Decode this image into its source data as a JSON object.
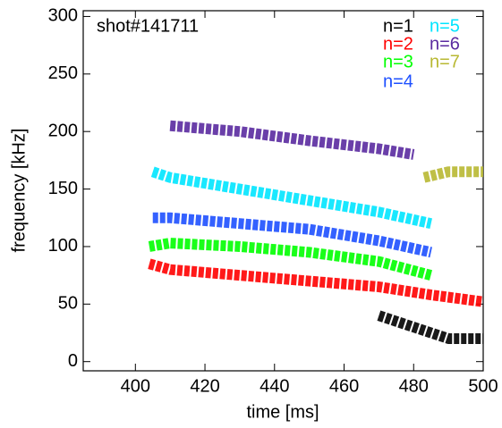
{
  "chart_data": {
    "type": "line",
    "annotation": "shot#141711",
    "xlabel": "time  [ms]",
    "ylabel": "frequency [kHz]",
    "xlim": [
      385,
      500
    ],
    "xticks": [
      400,
      420,
      440,
      460,
      480,
      500
    ],
    "ylim": [
      -8,
      305
    ],
    "yticks": [
      0,
      50,
      100,
      150,
      200,
      250,
      300
    ],
    "legend": "top-right",
    "series": [
      {
        "name": "n=1",
        "color": "#000000",
        "x": [
          470,
          475,
          480,
          485,
          490,
          500
        ],
        "values": [
          40,
          35,
          30,
          25,
          20,
          20
        ]
      },
      {
        "name": "n=2",
        "color": "#ff0000",
        "x": [
          404,
          410,
          430,
          450,
          470,
          485,
          500
        ],
        "values": [
          85,
          80,
          75,
          70,
          65,
          58,
          52
        ]
      },
      {
        "name": "n=3",
        "color": "#00ff00",
        "x": [
          404,
          410,
          430,
          450,
          470,
          485
        ],
        "values": [
          100,
          103,
          100,
          95,
          87,
          75
        ]
      },
      {
        "name": "n=4",
        "color": "#1e50ff",
        "x": [
          405,
          410,
          430,
          450,
          470,
          485
        ],
        "values": [
          125,
          125,
          120,
          115,
          105,
          95
        ]
      },
      {
        "name": "n=5",
        "color": "#00e5ff",
        "x": [
          405,
          410,
          430,
          450,
          470,
          485
        ],
        "values": [
          165,
          160,
          150,
          140,
          130,
          120
        ]
      },
      {
        "name": "n=6",
        "color": "#5a2aa0",
        "x": [
          410,
          430,
          450,
          470,
          480
        ],
        "values": [
          205,
          200,
          192,
          185,
          180
        ]
      },
      {
        "name": "n=7",
        "color": "#b8b832",
        "x": [
          483,
          490,
          500
        ],
        "values": [
          160,
          165,
          165
        ]
      }
    ]
  }
}
